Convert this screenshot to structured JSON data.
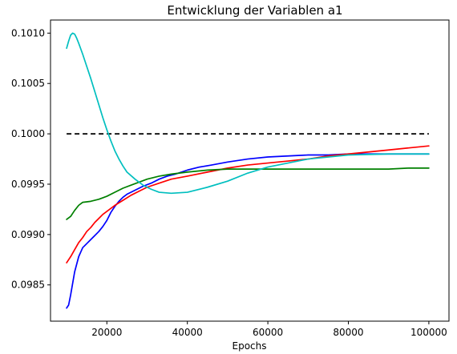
{
  "chart_data": {
    "type": "line",
    "title": "Entwicklung der Variablen a1",
    "xlabel": "Epochs",
    "ylabel": "",
    "xlim": [
      6000,
      105000
    ],
    "ylim": [
      0.09814,
      0.10113
    ],
    "grid": false,
    "x_ticks": [
      20000,
      40000,
      60000,
      80000,
      100000
    ],
    "x_tick_labels": [
      "20000",
      "40000",
      "60000",
      "80000",
      "100000"
    ],
    "y_ticks": [
      0.0985,
      0.099,
      0.0995,
      0.1,
      0.1005,
      0.101
    ],
    "y_tick_labels": [
      "0.0985",
      "0.0990",
      "0.0995",
      "0.1000",
      "0.1005",
      "0.1010"
    ],
    "series": [
      {
        "color": "#0000ff",
        "x": [
          10000,
          10500,
          11000,
          12000,
          13000,
          14000,
          15000,
          16000,
          17000,
          18000,
          19000,
          20000,
          21000,
          22000,
          23000,
          24000,
          25000,
          27000,
          29000,
          31000,
          33000,
          35000,
          37000,
          40000,
          43000,
          46000,
          50000,
          55000,
          60000,
          65000,
          70000,
          75000,
          80000,
          85000,
          90000,
          95000,
          100000
        ],
        "y": [
          0.09827,
          0.0983,
          0.0984,
          0.09863,
          0.09878,
          0.09887,
          0.09891,
          0.09895,
          0.09899,
          0.09903,
          0.09908,
          0.09914,
          0.09922,
          0.09928,
          0.09933,
          0.09937,
          0.0994,
          0.09944,
          0.09948,
          0.09951,
          0.09955,
          0.09958,
          0.0996,
          0.09964,
          0.09967,
          0.09969,
          0.09972,
          0.09975,
          0.09977,
          0.09978,
          0.09979,
          0.09979,
          0.0998,
          0.0998,
          0.0998,
          0.0998,
          0.0998
        ]
      },
      {
        "color": "#ff0000",
        "x": [
          10000,
          11000,
          12000,
          13000,
          14000,
          15000,
          16000,
          17000,
          18000,
          19000,
          20000,
          22000,
          24000,
          26000,
          28000,
          30000,
          33000,
          36000,
          40000,
          45000,
          50000,
          55000,
          60000,
          65000,
          70000,
          75000,
          80000,
          85000,
          90000,
          95000,
          100000
        ],
        "y": [
          0.09872,
          0.09878,
          0.09885,
          0.09892,
          0.09897,
          0.09903,
          0.09907,
          0.09912,
          0.09916,
          0.0992,
          0.09923,
          0.09929,
          0.09934,
          0.09939,
          0.09943,
          0.09947,
          0.09951,
          0.09955,
          0.09958,
          0.09962,
          0.09966,
          0.09969,
          0.09971,
          0.09973,
          0.09975,
          0.09978,
          0.0998,
          0.09982,
          0.09984,
          0.09986,
          0.09988
        ]
      },
      {
        "color": "#008000",
        "x": [
          10000,
          11000,
          12000,
          13000,
          14000,
          16000,
          18000,
          20000,
          22000,
          24000,
          26000,
          28000,
          30000,
          33000,
          36000,
          40000,
          45000,
          50000,
          55000,
          60000,
          65000,
          70000,
          75000,
          80000,
          85000,
          90000,
          95000,
          100000
        ],
        "y": [
          0.09915,
          0.09918,
          0.09924,
          0.09929,
          0.09932,
          0.09933,
          0.09935,
          0.09938,
          0.09942,
          0.09946,
          0.09949,
          0.09952,
          0.09955,
          0.09958,
          0.0996,
          0.09962,
          0.09964,
          0.09965,
          0.09965,
          0.09965,
          0.09965,
          0.09965,
          0.09965,
          0.09965,
          0.09965,
          0.09965,
          0.09966,
          0.09966
        ]
      },
      {
        "color": "#00bfbf",
        "x": [
          10000,
          10500,
          11000,
          11500,
          12000,
          12500,
          13000,
          14000,
          15000,
          16000,
          17000,
          18000,
          19000,
          20000,
          21000,
          22000,
          23000,
          24000,
          25000,
          27000,
          29000,
          31000,
          33000,
          36000,
          40000,
          45000,
          50000,
          55000,
          60000,
          65000,
          70000,
          80000,
          90000,
          100000
        ],
        "y": [
          0.10085,
          0.10092,
          0.10098,
          0.101,
          0.10099,
          0.10095,
          0.1009,
          0.10079,
          0.10067,
          0.10055,
          0.10042,
          0.10029,
          0.10016,
          0.10004,
          0.09993,
          0.09983,
          0.09975,
          0.09968,
          0.09962,
          0.09955,
          0.09949,
          0.09945,
          0.09942,
          0.09941,
          0.09942,
          0.09947,
          0.09953,
          0.09961,
          0.09967,
          0.09971,
          0.09975,
          0.09979,
          0.0998,
          0.0998
        ]
      }
    ],
    "reference_line": {
      "y": 0.1,
      "x_start": 10000,
      "x_end": 100000,
      "style": "dashed",
      "color": "#000000"
    }
  }
}
